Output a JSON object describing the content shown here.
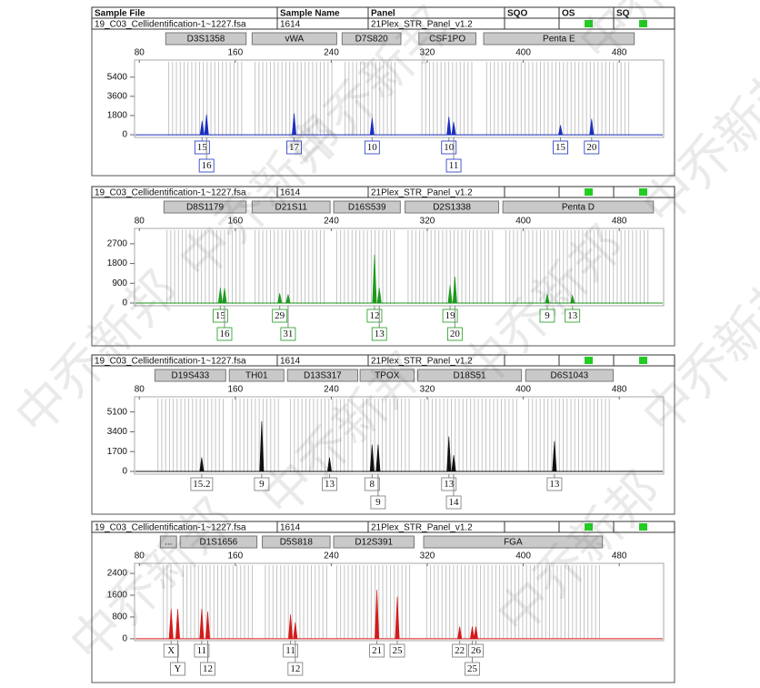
{
  "header": [
    "Sample File",
    "Sample Name",
    "Panel",
    "SQO",
    "OS",
    "SQ"
  ],
  "watermark": "中乔新邦",
  "chart_data": [
    {
      "type": "peak",
      "color": "#1a2fc0",
      "sample_file": "19_C03_Cellidentification-1~1227.fsa",
      "sample_name": "1614",
      "panel": "21Plex_STR_Panel_v1.2",
      "markers": [
        {
          "name": "D3S1358",
          "range": [
            102,
            169
          ]
        },
        {
          "name": "vWA",
          "range": [
            174,
            244.5
          ]
        },
        {
          "name": "D7S820",
          "range": [
            249,
            298
          ]
        },
        {
          "name": "CSF1PO",
          "range": [
            313,
            360.5
          ]
        },
        {
          "name": "Penta E",
          "range": [
            367,
            492.5
          ]
        }
      ],
      "x": [
        132.3,
        136,
        209,
        274,
        338,
        342,
        431,
        457
      ],
      "values": [
        1300,
        1900,
        2000,
        1600,
        1700,
        1200,
        900,
        1500
      ],
      "labels": [
        "15",
        "16",
        "17",
        "10",
        "10",
        "11",
        "15",
        "20"
      ],
      "xlim": [
        76,
        517
      ],
      "xticks": [
        80,
        160,
        240,
        320,
        400,
        480
      ],
      "ylim": [
        -250,
        7000
      ],
      "yticks": [
        0,
        1800,
        3600,
        5400
      ]
    },
    {
      "type": "peak",
      "color": "#1d9a1d",
      "sample_file": "19_C03_Cellidentification-1~1227.fsa",
      "sample_name": "1614",
      "panel": "21Plex_STR_Panel_v1.2",
      "markers": [
        {
          "name": "D8S1179",
          "range": [
            100.5,
            169
          ]
        },
        {
          "name": "D21S11",
          "range": [
            174,
            239
          ]
        },
        {
          "name": "D16S539",
          "range": [
            242,
            297.5
          ]
        },
        {
          "name": "D2S1338",
          "range": [
            301.5,
            379.5
          ]
        },
        {
          "name": "Penta D",
          "range": [
            383,
            508.5
          ]
        }
      ],
      "x": [
        147.5,
        151,
        197,
        204,
        276,
        280,
        339,
        343,
        420,
        441
      ],
      "values": [
        700,
        700,
        450,
        400,
        2200,
        700,
        800,
        1200,
        400,
        350
      ],
      "labels": [
        "15",
        "16",
        "29",
        "31",
        "12",
        "13",
        "19",
        "20",
        "9",
        "13"
      ],
      "xlim": [
        76,
        517
      ],
      "xticks": [
        80,
        160,
        240,
        320,
        400,
        480
      ],
      "ylim": [
        -125,
        3400
      ],
      "yticks": [
        0,
        900,
        1800,
        2700
      ]
    },
    {
      "type": "peak",
      "color": "#111111",
      "sample_file": "19_C03_Cellidentification-1~1227.fsa",
      "sample_name": "1614",
      "panel": "21Plex_STR_Panel_v1.2",
      "markers": [
        {
          "name": "D19S433",
          "range": [
            93,
            152
          ]
        },
        {
          "name": "TH01",
          "range": [
            155,
            200.5
          ]
        },
        {
          "name": "D13S317",
          "range": [
            203.5,
            262
          ]
        },
        {
          "name": "TPOX",
          "range": [
            264,
            309
          ]
        },
        {
          "name": "D18S51",
          "range": [
            312,
            398.5
          ]
        },
        {
          "name": "D6S1043",
          "range": [
            402,
            475
          ]
        }
      ],
      "x": [
        132,
        182,
        238.5,
        274,
        279,
        338,
        342,
        426
      ],
      "values": [
        1200,
        4300,
        1200,
        2300,
        2300,
        3000,
        1400,
        2600
      ],
      "labels": [
        "15.2",
        "9",
        "13",
        "8",
        "9",
        "13",
        "14",
        "13"
      ],
      "xlim": [
        76,
        517
      ],
      "xticks": [
        80,
        160,
        240,
        320,
        400,
        480
      ],
      "ylim": [
        -235,
        6400
      ],
      "yticks": [
        0,
        1700,
        3400,
        5100
      ]
    },
    {
      "type": "peak",
      "color": "#d41a1a",
      "sample_file": "19_C03_Cellidentification-1~1227.fsa",
      "sample_name": "1614",
      "panel": "21Plex_STR_Panel_v1.2",
      "markers": [
        {
          "name": "...",
          "range": [
            97.5,
            111
          ]
        },
        {
          "name": "D1S1656",
          "range": [
            114,
            178
          ]
        },
        {
          "name": "D5S818",
          "range": [
            182.5,
            239
          ]
        },
        {
          "name": "D12S391",
          "range": [
            242,
            309
          ]
        },
        {
          "name": "FGA",
          "range": [
            317,
            466
          ]
        }
      ],
      "x": [
        106.5,
        112,
        132,
        137,
        206,
        210,
        278,
        295,
        347,
        357.5,
        360.5
      ],
      "values": [
        1100,
        1100,
        1100,
        1000,
        900,
        600,
        1800,
        1550,
        450,
        450,
        450
      ],
      "labels": [
        "X",
        "Y",
        "11",
        "12",
        "11",
        "12",
        "21",
        "25",
        "22",
        "25",
        "26"
      ],
      "xlim": [
        76,
        517
      ],
      "xticks": [
        80,
        160,
        240,
        320,
        400,
        480
      ],
      "ylim": [
        -70,
        2770
      ],
      "yticks": [
        0,
        800,
        1600,
        2400
      ]
    }
  ]
}
